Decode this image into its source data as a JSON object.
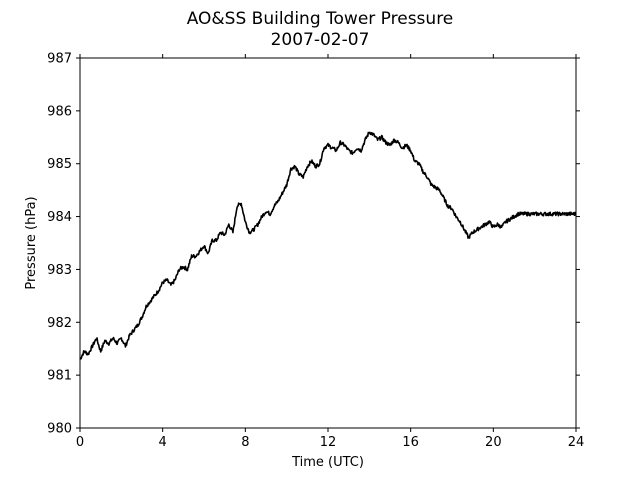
{
  "chart_data": {
    "type": "line",
    "title": "AO&SS Building Tower Pressure",
    "subtitle": "2007-02-07",
    "xlabel": "Time (UTC)",
    "ylabel": "Pressure (hPa)",
    "xlim": [
      0,
      24
    ],
    "ylim": [
      980,
      987
    ],
    "xticks": [
      0,
      4,
      8,
      12,
      16,
      20,
      24
    ],
    "yticks": [
      980,
      981,
      982,
      983,
      984,
      985,
      986,
      987
    ],
    "grid": false,
    "series": [
      {
        "color": "#000000",
        "x": [
          0.0,
          0.2,
          0.4,
          0.6,
          0.8,
          1.0,
          1.2,
          1.4,
          1.6,
          1.8,
          2.0,
          2.2,
          2.4,
          2.6,
          2.8,
          3.0,
          3.2,
          3.4,
          3.6,
          3.8,
          4.0,
          4.2,
          4.4,
          4.6,
          4.8,
          5.0,
          5.2,
          5.4,
          5.6,
          5.8,
          6.0,
          6.2,
          6.4,
          6.6,
          6.8,
          7.0,
          7.2,
          7.4,
          7.6,
          7.8,
          8.0,
          8.2,
          8.4,
          8.6,
          8.8,
          9.0,
          9.2,
          9.4,
          9.6,
          9.8,
          10.0,
          10.2,
          10.4,
          10.6,
          10.8,
          11.0,
          11.2,
          11.4,
          11.6,
          11.8,
          12.0,
          12.2,
          12.4,
          12.6,
          12.8,
          13.0,
          13.2,
          13.4,
          13.6,
          13.8,
          14.0,
          14.2,
          14.4,
          14.6,
          14.8,
          15.0,
          15.2,
          15.4,
          15.6,
          15.8,
          16.0,
          16.2,
          16.4,
          16.6,
          16.8,
          17.0,
          17.2,
          17.4,
          17.6,
          17.8,
          18.0,
          18.2,
          18.4,
          18.6,
          18.8,
          19.0,
          19.2,
          19.4,
          19.6,
          19.8,
          20.0,
          20.2,
          20.4,
          20.6,
          20.8,
          21.0,
          21.2,
          21.4,
          21.6,
          21.8,
          22.0,
          22.2,
          22.4,
          22.6,
          22.8,
          23.0,
          23.2,
          23.4,
          23.6,
          23.8,
          24.0
        ],
        "values": [
          981.3,
          981.45,
          981.4,
          981.55,
          981.7,
          981.45,
          981.65,
          981.6,
          981.7,
          981.6,
          981.7,
          981.55,
          981.75,
          981.85,
          981.95,
          982.1,
          982.3,
          982.4,
          982.5,
          982.6,
          982.75,
          982.8,
          982.7,
          982.8,
          983.0,
          983.05,
          983.0,
          983.25,
          983.25,
          983.35,
          983.45,
          983.3,
          983.55,
          983.55,
          983.7,
          983.65,
          983.85,
          983.7,
          984.2,
          984.25,
          983.9,
          983.7,
          983.75,
          983.85,
          984.0,
          984.1,
          984.05,
          984.2,
          984.3,
          984.45,
          984.6,
          984.9,
          984.95,
          984.8,
          984.75,
          984.95,
          985.05,
          984.95,
          985.0,
          985.3,
          985.35,
          985.3,
          985.25,
          985.4,
          985.35,
          985.25,
          985.2,
          985.3,
          985.25,
          985.45,
          985.6,
          985.55,
          985.45,
          985.5,
          985.4,
          985.35,
          985.45,
          985.4,
          985.3,
          985.35,
          985.25,
          985.05,
          985.0,
          984.85,
          984.75,
          984.6,
          984.55,
          984.5,
          984.35,
          984.2,
          984.15,
          984.0,
          983.9,
          983.75,
          983.6,
          983.7,
          983.75,
          983.8,
          983.85,
          983.9,
          983.8,
          983.85,
          983.8,
          983.9,
          983.95,
          984.0,
          984.05,
          984.05,
          984.05,
          984.05,
          984.05,
          984.05,
          984.05,
          984.05,
          984.05,
          984.05,
          984.05,
          984.05,
          984.05,
          984.05,
          984.05
        ]
      }
    ]
  }
}
